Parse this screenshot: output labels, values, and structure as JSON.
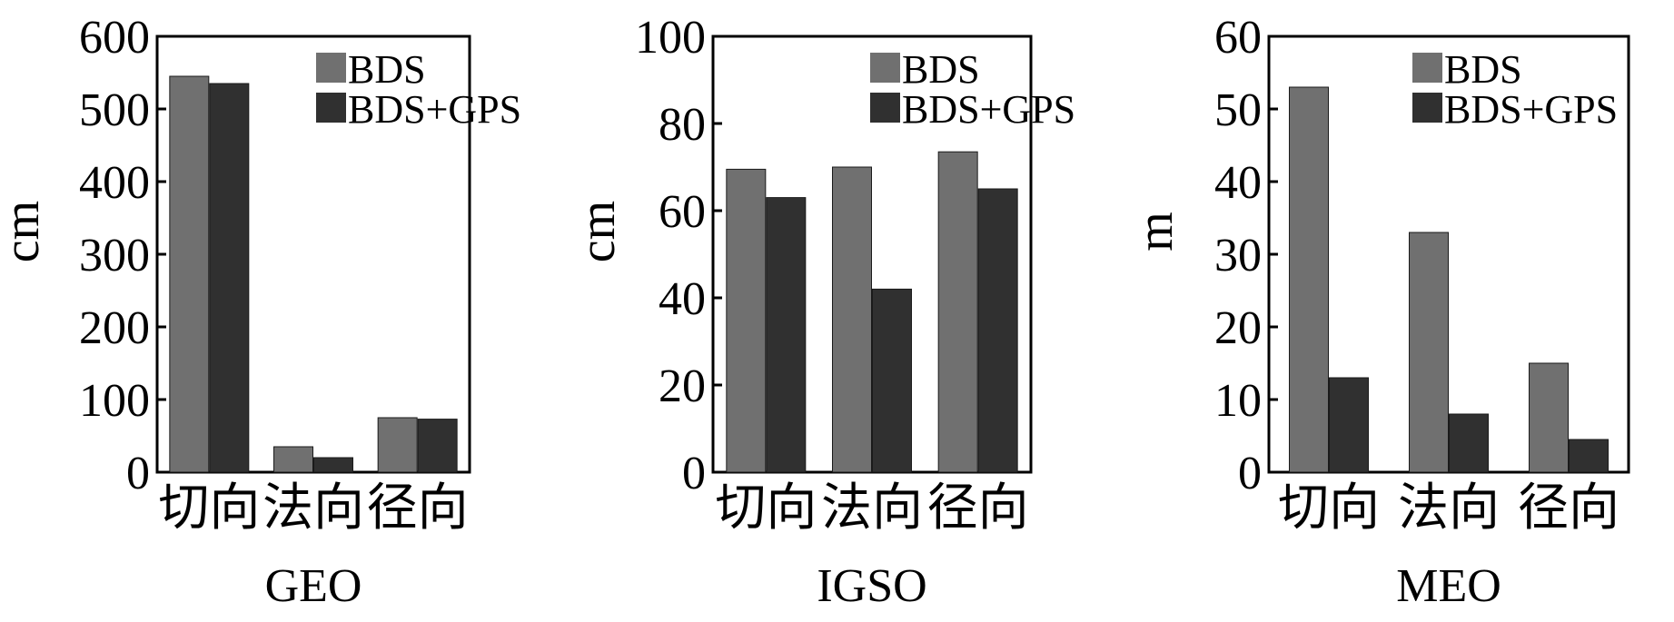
{
  "colors": {
    "bds": "#707070",
    "bds_gps": "#303030",
    "axis": "#000000",
    "background": "#ffffff"
  },
  "chart_data": [
    {
      "type": "bar",
      "title": "GEO",
      "xlabel": "GEO",
      "ylabel": "cm",
      "ylim": [
        0,
        600
      ],
      "yticks": [
        "0",
        "100",
        "200",
        "300",
        "400",
        "500",
        "600"
      ],
      "categories": [
        "切向",
        "法向",
        "径向"
      ],
      "series": [
        {
          "name": "BDS",
          "values": [
            545,
            35,
            75
          ]
        },
        {
          "name": "BDS+GPS",
          "values": [
            535,
            20,
            73
          ]
        }
      ],
      "legend": "top-right"
    },
    {
      "type": "bar",
      "title": "IGSO",
      "xlabel": "IGSO",
      "ylabel": "cm",
      "ylim": [
        0,
        100
      ],
      "yticks": [
        "0",
        "20",
        "40",
        "60",
        "80",
        "100"
      ],
      "categories": [
        "切向",
        "法向",
        "径向"
      ],
      "series": [
        {
          "name": "BDS",
          "values": [
            69.5,
            70,
            73.5
          ]
        },
        {
          "name": "BDS+GPS",
          "values": [
            63,
            42,
            65
          ]
        }
      ],
      "legend": "top-right"
    },
    {
      "type": "bar",
      "title": "MEO",
      "xlabel": "MEO",
      "ylabel": "m",
      "ylim": [
        0,
        60
      ],
      "yticks": [
        "0",
        "10",
        "20",
        "30",
        "40",
        "50",
        "60"
      ],
      "categories": [
        "切向",
        "法向",
        "径向"
      ],
      "series": [
        {
          "name": "BDS",
          "values": [
            53,
            33,
            15
          ]
        },
        {
          "name": "BDS+GPS",
          "values": [
            13,
            8,
            4.5
          ]
        }
      ],
      "legend": "top-right"
    }
  ]
}
